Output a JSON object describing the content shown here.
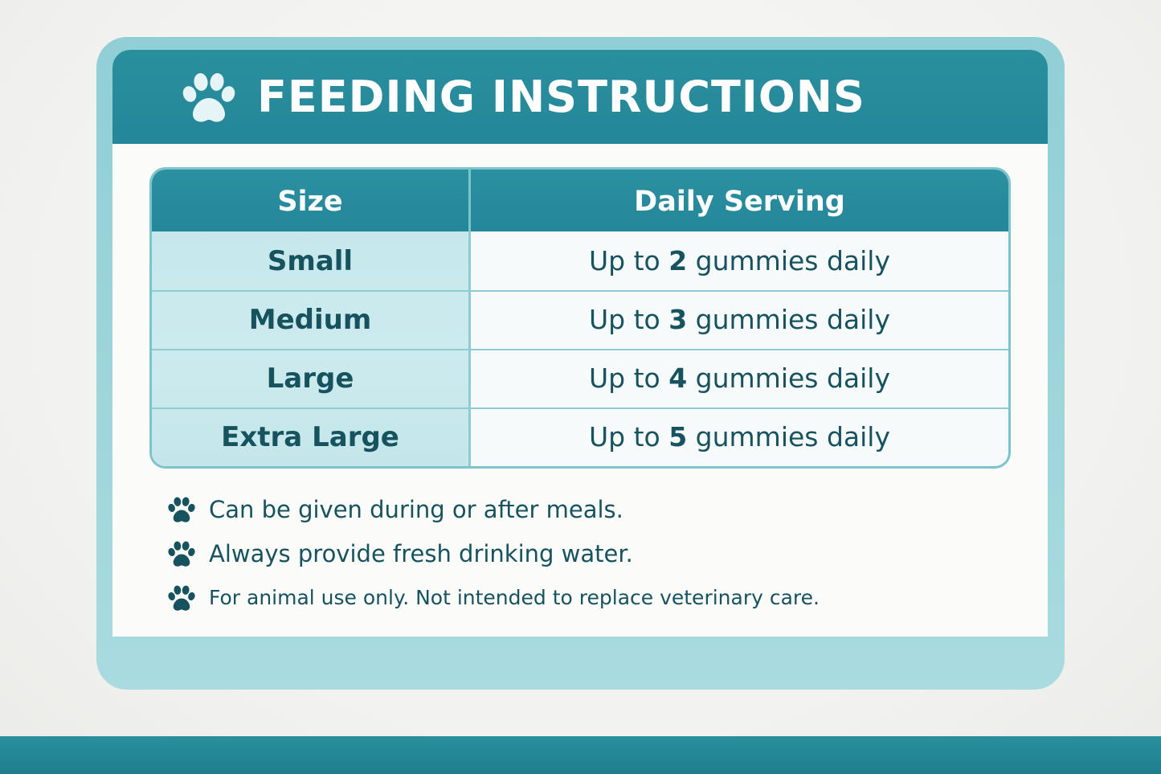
{
  "header": {
    "title": "FEEDING INSTRUCTIONS",
    "icon": "paw-icon"
  },
  "table": {
    "columns": [
      "Size",
      "Daily Serving"
    ],
    "rows": [
      {
        "size": "Small",
        "prefix": "Up to ",
        "count": "2",
        "suffix": " gummies daily"
      },
      {
        "size": "Medium",
        "prefix": "Up to ",
        "count": "3",
        "suffix": " gummies daily"
      },
      {
        "size": "Large",
        "prefix": "Up to ",
        "count": "4",
        "suffix": " gummies daily"
      },
      {
        "size": "Extra Large",
        "prefix": "Up to ",
        "count": "5",
        "suffix": " gummies daily"
      }
    ]
  },
  "notes": [
    "Can be given during or after meals.",
    "Always provide fresh drinking water.",
    "For animal use only. Not intended to replace veterinary care."
  ],
  "colors": {
    "accent": "#24879a",
    "text": "#17535e",
    "light_teal": "#c6e8ec",
    "frame": "#9fd6db"
  }
}
